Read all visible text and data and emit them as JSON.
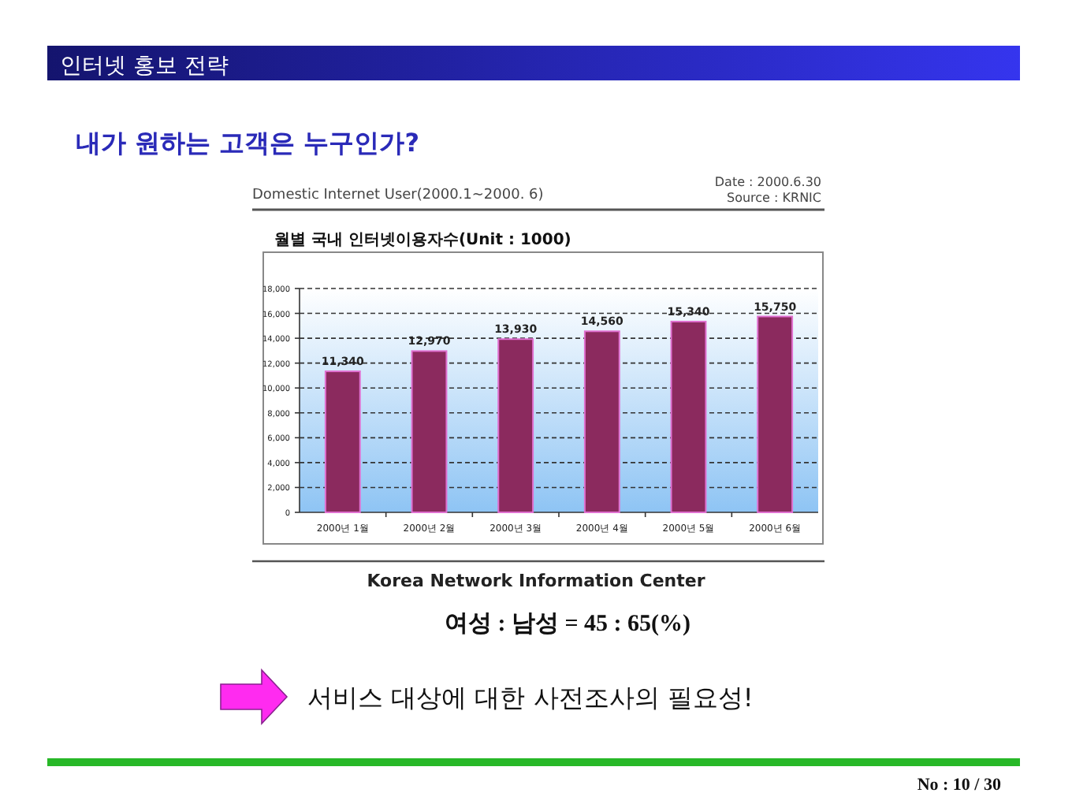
{
  "chart_data": {
    "type": "bar",
    "title": "월별 국내 인터넷이용자수(Unit : 1000)",
    "subtitle": "Domestic Internet User(2000.1~2000. 6)",
    "annotations": [
      "인터넷 홍보 전략",
      "내가 원하는 고객은 누구인가?",
      "Date : 2000.6.30",
      "Source : KRNIC",
      "Korea Network Information Center",
      "여성 : 남성 = 45 : 65(%)",
      "서비스 대상에 대한 사전조사의 필요성!",
      "No : 10 / 30"
    ],
    "categories": [
      "2000년 1월",
      "2000년 2월",
      "2000년 3월",
      "2000년 4월",
      "2000년 5월",
      "2000년 6월"
    ],
    "values": [
      11340,
      12970,
      13930,
      14560,
      15340,
      15750
    ],
    "value_labels": [
      "11,340",
      "12,970",
      "13,930",
      "14,560",
      "15,340",
      "15,750"
    ],
    "color": "#8b2a5e",
    "ylim": [
      0,
      18000
    ],
    "yticks": [
      0,
      {
        "value": 2000,
        "label": "2,000"
      },
      {
        "value": 4000,
        "label": "4,000"
      },
      {
        "value": 6000,
        "label": "6,000"
      },
      {
        "value": 8000,
        "label": "8,000"
      },
      {
        "value": 10000,
        "label": "10,000"
      },
      {
        "value": 12000,
        "label": "12,000"
      },
      {
        "value": 14000,
        "label": "14,000"
      },
      {
        "value": 16000,
        "label": "16,000"
      },
      {
        "value": 18000,
        "label": "18,000"
      }
    ],
    "grid": "y"
  }
}
